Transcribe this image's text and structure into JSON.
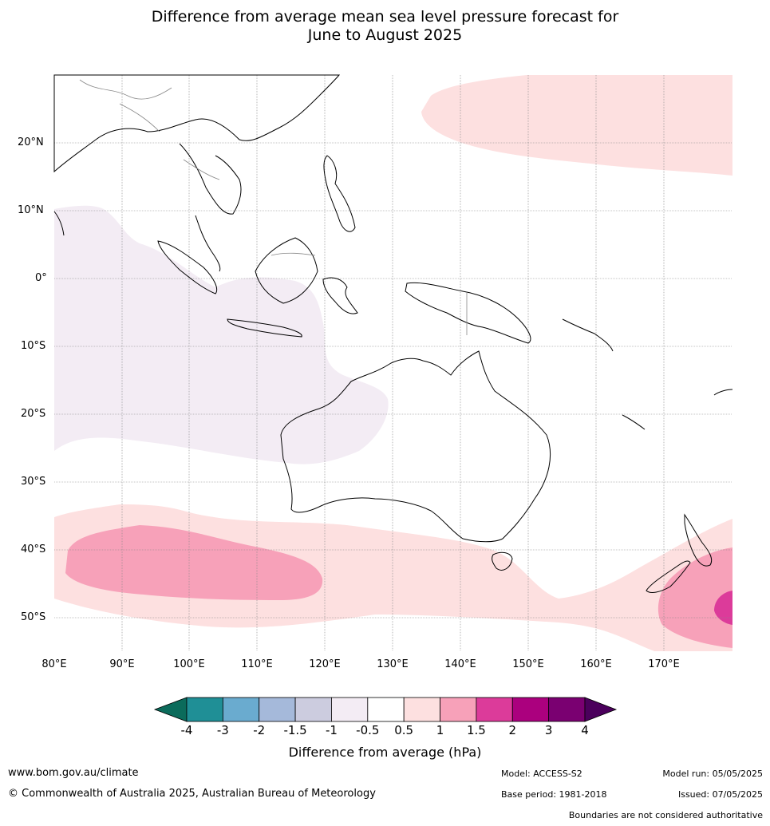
{
  "title_line1": "Difference from average mean sea level pressure forecast for",
  "title_line2": "June to August 2025",
  "lat_labels": [
    "20°N",
    "10°N",
    "0°",
    "10°S",
    "20°S",
    "30°S",
    "40°S",
    "50°S"
  ],
  "lon_labels": [
    "80°E",
    "90°E",
    "100°E",
    "110°E",
    "120°E",
    "130°E",
    "140°E",
    "150°E",
    "160°E",
    "170°E"
  ],
  "legend": {
    "title": "Difference from average (hPa)",
    "ticks": [
      "-4",
      "-3",
      "-2",
      "-1.5",
      "-1",
      "-0.5",
      "0.5",
      "1",
      "1.5",
      "2",
      "3",
      "4"
    ],
    "colors": [
      "#0b6b5b",
      "#1f8f96",
      "#6aabcf",
      "#a5b9da",
      "#ccccdf",
      "#f3ecf4",
      "#ffffff",
      "#fde0e0",
      "#f7a1b9",
      "#dc3b9a",
      "#ab007e",
      "#7a0071",
      "#4b005c"
    ]
  },
  "footer": {
    "website": "www.bom.gov.au/climate",
    "copyright": "© Commonwealth of Australia 2025, Australian Bureau of Meteorology",
    "model": "Model: ACCESS-S2",
    "base_period": "Base period: 1981-2018",
    "model_run": "Model run: 05/05/2025",
    "issued": "Issued: 07/05/2025",
    "disclaimer": "Boundaries are not considered authoritative"
  }
}
